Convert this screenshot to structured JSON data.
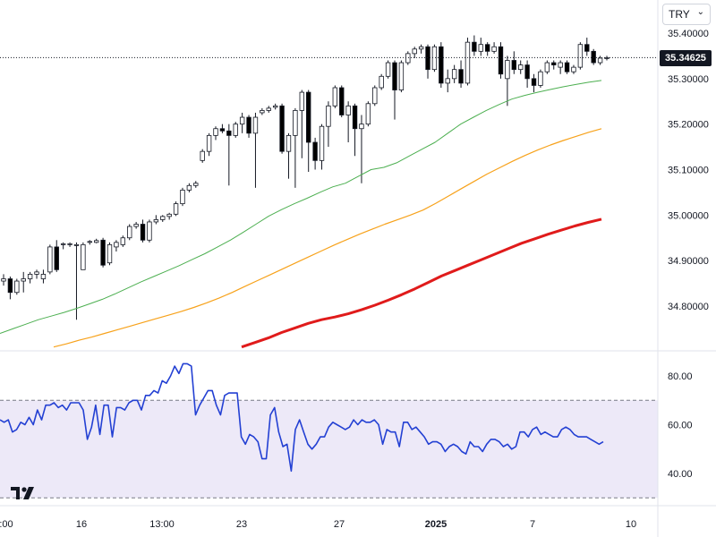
{
  "currency_selector": {
    "value": "TRY"
  },
  "last_price": "35.34625",
  "price_axis": [
    "35.40000",
    "35.30000",
    "35.20000",
    "35.10000",
    "35.00000",
    "34.90000",
    "34.80000"
  ],
  "rsi_axis": [
    "80.00",
    "60.00",
    "40.00"
  ],
  "time_axis": [
    {
      "label": ":00",
      "bold": false
    },
    {
      "label": "16",
      "bold": false
    },
    {
      "label": "13:00",
      "bold": false
    },
    {
      "label": "23",
      "bold": false
    },
    {
      "label": "27",
      "bold": false
    },
    {
      "label": "2025",
      "bold": true
    },
    {
      "label": "7",
      "bold": false
    },
    {
      "label": "10",
      "bold": false
    }
  ],
  "colors": {
    "up": "#ffffff",
    "down": "#000000",
    "wick": "#131722",
    "ma_fast": "#4caf50",
    "ma_mid": "#f7a21b",
    "ma_slow": "#e01b1b",
    "rsi_line": "#2340d3",
    "rsi_band": "#ede9f8"
  },
  "chart_data": [
    {
      "type": "candlestick",
      "title": "",
      "ylim": [
        34.71,
        35.43
      ],
      "series": [
        {
          "name": "",
          "kind": "ohlc",
          "values": [
            [
              34.855,
              34.87,
              34.845,
              34.86
            ],
            [
              34.86,
              34.865,
              34.815,
              34.83
            ],
            [
              34.83,
              34.86,
              34.825,
              34.855
            ],
            [
              34.855,
              34.875,
              34.83,
              34.86
            ],
            [
              34.86,
              34.875,
              34.85,
              34.87
            ],
            [
              34.87,
              34.88,
              34.86,
              34.875
            ],
            [
              34.86,
              34.88,
              34.85,
              34.87
            ],
            [
              34.875,
              34.935,
              34.87,
              34.93
            ],
            [
              34.93,
              34.945,
              34.875,
              34.88
            ],
            [
              34.935,
              34.94,
              34.925,
              34.937
            ],
            [
              34.935,
              34.94,
              34.93,
              34.937
            ],
            [
              34.933,
              34.94,
              34.77,
              34.935
            ],
            [
              34.88,
              34.94,
              34.88,
              34.935
            ],
            [
              34.94,
              34.945,
              34.935,
              34.942
            ],
            [
              34.94,
              34.948,
              34.938,
              34.944
            ],
            [
              34.945,
              34.95,
              34.885,
              34.89
            ],
            [
              34.895,
              34.94,
              34.89,
              34.935
            ],
            [
              34.93,
              34.945,
              34.92,
              34.94
            ],
            [
              34.935,
              34.955,
              34.93,
              34.95
            ],
            [
              34.95,
              34.98,
              34.945,
              34.975
            ],
            [
              34.975,
              34.985,
              34.97,
              34.98
            ],
            [
              34.98,
              34.99,
              34.94,
              34.945
            ],
            [
              34.945,
              34.99,
              34.94,
              34.985
            ],
            [
              34.985,
              35.0,
              34.98,
              34.99
            ],
            [
              34.99,
              35.0,
              34.985,
              34.997
            ],
            [
              34.997,
              35.005,
              34.99,
              35.002
            ],
            [
              35.002,
              35.03,
              34.998,
              35.025
            ],
            [
              35.025,
              35.06,
              35.02,
              35.055
            ],
            [
              35.055,
              35.07,
              35.05,
              35.065
            ],
            [
              35.065,
              35.075,
              35.06,
              35.07
            ],
            [
              35.12,
              35.145,
              35.115,
              35.14
            ],
            [
              35.14,
              35.18,
              35.13,
              35.175
            ],
            [
              35.175,
              35.195,
              35.165,
              35.19
            ],
            [
              35.19,
              35.2,
              35.18,
              35.185
            ],
            [
              35.185,
              35.2,
              35.065,
              35.175
            ],
            [
              35.175,
              35.205,
              35.17,
              35.2
            ],
            [
              35.2,
              35.225,
              35.18,
              35.215
            ],
            [
              35.215,
              35.22,
              35.17,
              35.18
            ],
            [
              35.18,
              35.225,
              35.06,
              35.215
            ],
            [
              35.225,
              35.235,
              35.22,
              35.23
            ],
            [
              35.23,
              35.24,
              35.225,
              35.235
            ],
            [
              35.237,
              35.245,
              35.232,
              35.24
            ],
            [
              35.24,
              35.245,
              35.135,
              35.14
            ],
            [
              35.14,
              35.18,
              35.08,
              35.175
            ],
            [
              35.175,
              35.235,
              35.06,
              35.23
            ],
            [
              35.23,
              35.275,
              35.125,
              35.27
            ],
            [
              35.27,
              35.275,
              35.095,
              35.16
            ],
            [
              35.16,
              35.17,
              35.1,
              35.12
            ],
            [
              35.12,
              35.2,
              35.1,
              35.195
            ],
            [
              35.195,
              35.25,
              35.15,
              35.24
            ],
            [
              35.24,
              35.285,
              35.235,
              35.28
            ],
            [
              35.28,
              35.285,
              35.215,
              35.22
            ],
            [
              35.22,
              35.25,
              35.16,
              35.24
            ],
            [
              35.24,
              35.245,
              35.13,
              35.19
            ],
            [
              35.19,
              35.22,
              35.07,
              35.2
            ],
            [
              35.2,
              35.25,
              35.195,
              35.245
            ],
            [
              35.245,
              35.285,
              35.24,
              35.28
            ],
            [
              35.28,
              35.31,
              35.275,
              35.305
            ],
            [
              35.305,
              35.34,
              35.3,
              35.335
            ],
            [
              35.335,
              35.34,
              35.21,
              35.275
            ],
            [
              35.275,
              35.34,
              35.27,
              35.335
            ],
            [
              35.335,
              35.36,
              35.33,
              35.355
            ],
            [
              35.355,
              35.37,
              35.345,
              35.365
            ],
            [
              35.365,
              35.375,
              35.355,
              35.37
            ],
            [
              35.37,
              35.375,
              35.3,
              35.32
            ],
            [
              35.32,
              35.375,
              35.315,
              35.37
            ],
            [
              35.37,
              35.38,
              35.28,
              35.29
            ],
            [
              35.29,
              35.32,
              35.27,
              35.3
            ],
            [
              35.3,
              35.33,
              35.29,
              35.32
            ],
            [
              35.32,
              35.34,
              35.28,
              35.29
            ],
            [
              35.29,
              35.39,
              35.285,
              35.38
            ],
            [
              35.38,
              35.395,
              35.35,
              35.36
            ],
            [
              35.36,
              35.39,
              35.35,
              35.375
            ],
            [
              35.375,
              35.38,
              35.35,
              35.36
            ],
            [
              35.36,
              35.38,
              35.355,
              35.37
            ],
            [
              35.37,
              35.38,
              35.3,
              35.31
            ],
            [
              35.3,
              35.35,
              35.24,
              35.34
            ],
            [
              35.34,
              35.36,
              35.31,
              35.32
            ],
            [
              35.32,
              35.34,
              35.31,
              35.33
            ],
            [
              35.33,
              35.34,
              35.28,
              35.3
            ],
            [
              35.3,
              35.31,
              35.27,
              35.285
            ],
            [
              35.285,
              35.32,
              35.28,
              35.315
            ],
            [
              35.315,
              35.34,
              35.31,
              35.335
            ],
            [
              35.335,
              35.34,
              35.32,
              35.33
            ],
            [
              35.325,
              35.34,
              35.31,
              35.335
            ],
            [
              35.335,
              35.34,
              35.31,
              35.315
            ],
            [
              35.315,
              35.33,
              35.31,
              35.325
            ],
            [
              35.325,
              35.38,
              35.32,
              35.375
            ],
            [
              35.375,
              35.39,
              35.35,
              35.36
            ],
            [
              35.36,
              35.365,
              35.33,
              35.335
            ],
            [
              35.335,
              35.35,
              35.33,
              35.345
            ],
            [
              35.345,
              35.35,
              35.34,
              35.346
            ]
          ]
        },
        {
          "name": "",
          "kind": "line",
          "color_key": "ma_fast",
          "values": [
            34.74,
            34.75,
            34.76,
            34.77,
            34.778,
            34.786,
            34.795,
            34.805,
            34.815,
            34.827,
            34.84,
            34.853,
            34.865,
            34.877,
            34.889,
            34.902,
            34.915,
            34.93,
            34.945,
            34.962,
            34.98,
            34.998,
            35.012,
            35.025,
            35.037,
            35.05,
            35.062,
            35.07,
            35.085,
            35.1,
            35.105,
            35.115,
            35.13,
            35.145,
            35.16,
            35.18,
            35.2,
            35.215,
            35.23,
            35.243,
            35.255,
            35.263,
            35.27,
            35.276,
            35.282,
            35.287,
            35.292,
            35.296
          ]
        },
        {
          "name": "",
          "kind": "line",
          "color_key": "ma_mid",
          "values": [
            34.71,
            34.717,
            34.725,
            34.732,
            34.74,
            34.748,
            34.756,
            34.764,
            34.772,
            34.78,
            34.788,
            34.797,
            34.807,
            34.818,
            34.83,
            34.843,
            34.856,
            34.869,
            34.882,
            34.895,
            34.908,
            34.921,
            34.934,
            34.946,
            34.958,
            34.969,
            34.98,
            34.99,
            35.0,
            35.011,
            35.026,
            35.042,
            35.058,
            35.074,
            35.09,
            35.104,
            35.118,
            35.131,
            35.143,
            35.154,
            35.164,
            35.173,
            35.182,
            35.19
          ]
        },
        {
          "name": "",
          "kind": "line",
          "color_key": "ma_slow",
          "values": [
            34.71,
            34.72,
            34.73,
            34.742,
            34.752,
            34.762,
            34.77,
            34.776,
            34.783,
            34.792,
            34.802,
            34.813,
            34.825,
            34.838,
            34.852,
            34.866,
            34.878,
            34.89,
            34.902,
            34.914,
            34.926,
            34.938,
            34.948,
            34.958,
            34.967,
            34.976,
            34.984,
            34.991
          ]
        }
      ]
    },
    {
      "type": "line",
      "title": "",
      "ylim": [
        30,
        90
      ],
      "series": [
        {
          "name": "",
          "values": [
            62,
            61,
            62,
            57,
            58,
            61,
            60,
            63,
            60,
            66,
            62,
            68,
            68,
            69,
            67,
            68,
            66,
            69,
            69,
            69,
            66,
            54,
            59,
            68,
            56,
            68,
            68,
            55,
            67,
            67,
            66,
            69,
            70,
            70,
            66,
            72,
            72,
            74,
            73,
            78,
            77,
            80,
            84,
            81,
            85,
            85,
            84,
            64,
            68,
            71,
            74,
            74,
            68,
            64,
            72,
            73,
            73,
            73,
            55,
            52,
            56,
            55,
            53,
            46,
            46,
            64,
            67,
            57,
            51,
            52,
            41,
            58,
            62,
            57,
            52,
            50,
            52,
            55,
            55,
            59,
            61,
            60,
            59,
            58,
            59,
            62,
            60,
            62,
            61,
            61,
            62,
            60,
            52,
            58,
            57,
            57,
            51,
            61,
            61,
            58,
            59,
            57,
            55,
            52,
            53,
            53,
            52,
            49,
            51,
            52,
            51,
            49,
            48,
            53,
            51,
            51,
            49,
            52,
            54,
            54,
            53,
            51,
            52,
            50,
            51,
            57,
            57,
            55,
            58,
            59,
            56,
            57,
            56,
            55,
            55,
            58,
            59,
            58,
            56,
            55,
            55,
            55,
            54,
            53,
            52,
            53
          ]
        }
      ]
    }
  ]
}
